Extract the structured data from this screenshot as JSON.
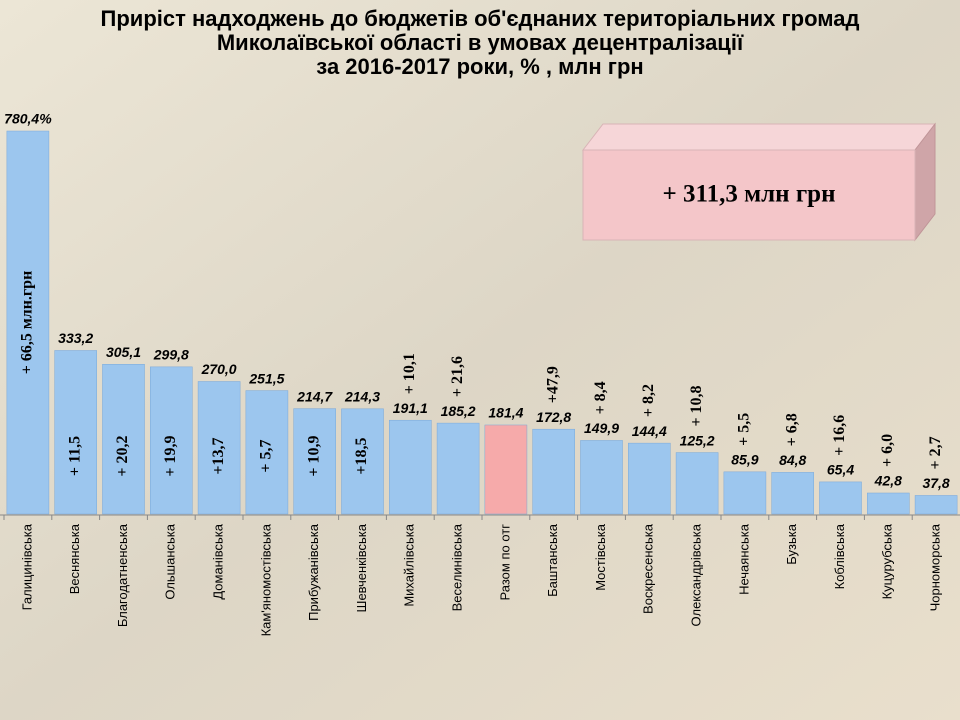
{
  "chart_data": {
    "type": "bar",
    "title": [
      "Приріст надходжень до бюджетів об'єднаних територіальних громад",
      "Миколаївської області в умовах децентралізації",
      "за 2016-2017 роки, % , млн грн"
    ],
    "categories": [
      "Галицинівська",
      "Веснянська",
      "Благодатненська",
      "Ольшанська",
      "Доманівська",
      "Кам'яномостівська",
      "Прибужанівська",
      "Шевченківська",
      "Михайлівська",
      "Веселинівська",
      "Разом по отг",
      "Баштанська",
      "Мостівська",
      "Воскресенська",
      "Олександрівська",
      "Нечаянська",
      "Бузька",
      "Коблівська",
      "Куцурубська",
      "Чорноморська"
    ],
    "values": [
      780.4,
      333.2,
      305.1,
      299.8,
      270.0,
      251.5,
      214.7,
      214.3,
      191.1,
      185.2,
      181.4,
      172.8,
      149.9,
      144.4,
      125.2,
      85.9,
      84.8,
      65.4,
      42.8,
      37.8
    ],
    "value_labels": [
      "780,4%",
      "333,2",
      "305,1",
      "299,8",
      "270,0",
      "251,5",
      "214,7",
      "214,3",
      "191,1",
      "185,2",
      "181,4",
      "172,8",
      "149,9",
      "144,4",
      "125,2",
      "85,9",
      "84,8",
      "65,4",
      "42,8",
      "37,8"
    ],
    "growth_labels": [
      "+ 66,5 млн.грн",
      "+ 11,5",
      "+ 20,2",
      "+ 19,9",
      "+13,7",
      "+ 5,7",
      "+ 10,9",
      "+18,5",
      "+ 10,1",
      "+ 21,6",
      null,
      "+47,9",
      "+ 8,4",
      "+ 8,2",
      "+ 10,8",
      "+ 5,5",
      "+ 6,8",
      "+ 16,6",
      "+ 6,0",
      "+ 2,7"
    ],
    "bar_colors": [
      "#9cc6ee",
      "#9cc6ee",
      "#9cc6ee",
      "#9cc6ee",
      "#9cc6ee",
      "#9cc6ee",
      "#9cc6ee",
      "#9cc6ee",
      "#9cc6ee",
      "#9cc6ee",
      "#f6aaaa",
      "#9cc6ee",
      "#9cc6ee",
      "#9cc6ee",
      "#9cc6ee",
      "#9cc6ee",
      "#9cc6ee",
      "#9cc6ee",
      "#9cc6ee",
      "#9cc6ee"
    ],
    "callout": "+ 311,3 млн грн"
  }
}
